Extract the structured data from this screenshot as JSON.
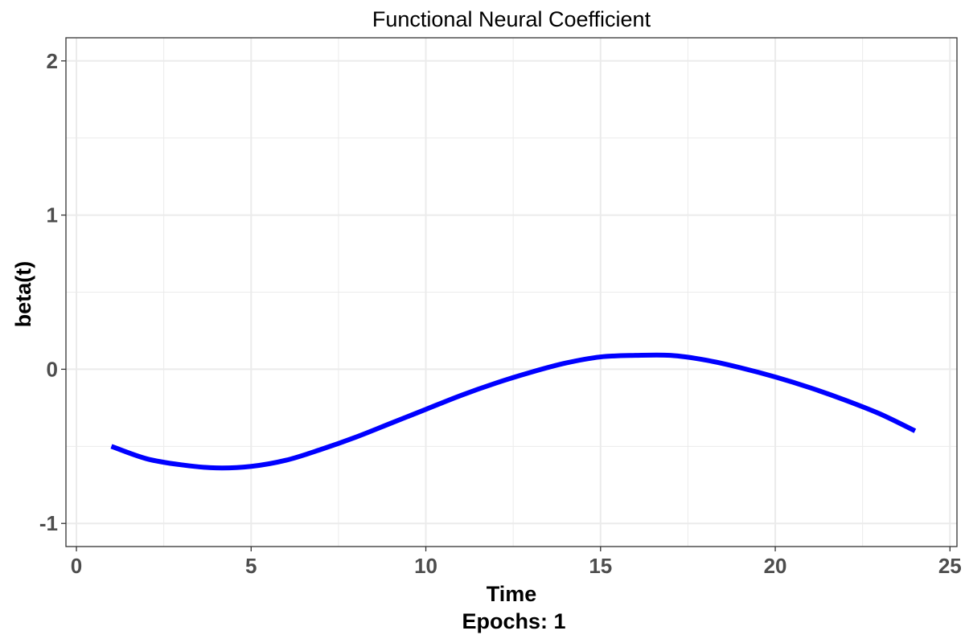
{
  "chart_data": {
    "type": "line",
    "title": "Functional Neural Coefficient",
    "xlabel": "Time",
    "caption": "Epochs: 1",
    "ylabel": "beta(t)",
    "xlim": [
      -0.3,
      25.2
    ],
    "ylim": [
      -1.15,
      2.15
    ],
    "xticks": [
      0,
      5,
      10,
      15,
      20,
      25
    ],
    "xtick_labels": [
      "0",
      "5",
      "10",
      "15",
      "20",
      "25"
    ],
    "yticks": [
      -1,
      0,
      1,
      2
    ],
    "ytick_labels": [
      "-1",
      "0",
      "1",
      "2"
    ],
    "grid": true,
    "legend": "none",
    "colors": {
      "line": "#0000ff",
      "grid": "#ebebeb",
      "border": "#333333"
    },
    "series": [
      {
        "x": [
          1,
          2,
          3,
          4,
          5,
          6,
          7,
          8,
          9,
          10,
          11,
          12,
          13,
          14,
          15,
          16,
          17,
          18,
          19,
          20,
          21,
          22,
          23,
          24
        ],
        "y": [
          -0.5,
          -0.58,
          -0.62,
          -0.64,
          -0.63,
          -0.59,
          -0.52,
          -0.44,
          -0.35,
          -0.26,
          -0.17,
          -0.09,
          -0.02,
          0.04,
          0.08,
          0.09,
          0.09,
          0.06,
          0.01,
          -0.05,
          -0.12,
          -0.2,
          -0.29,
          -0.4
        ]
      }
    ]
  }
}
